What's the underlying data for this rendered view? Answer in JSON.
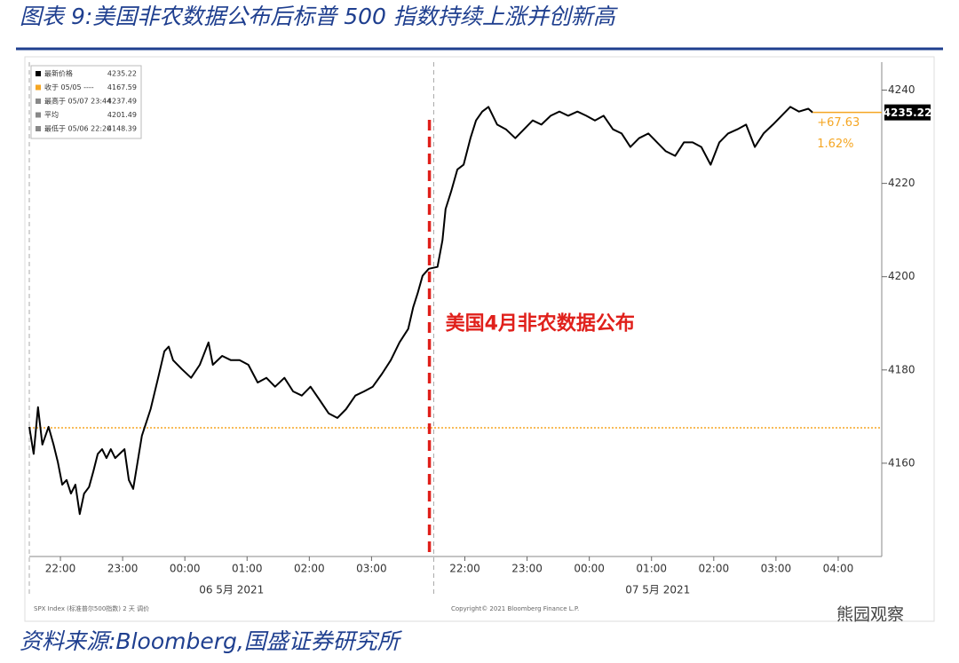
{
  "chart_data": {
    "type": "line",
    "title": "图表 9:美国非农数据公布后标普 500 指数持续上涨并创新高",
    "source": "资料来源:Bloomberg,国盛证券研究所",
    "footnote_left": "SPX Index (标准普尔500指数) 2 天 调价",
    "footnote_right": "Copyright© 2021 Bloomberg Finance L.P.",
    "watermark": "熊园观察",
    "color": "#000000",
    "x": [
      0,
      0.07,
      0.14,
      0.21,
      0.31,
      0.39,
      0.46,
      0.53,
      0.6,
      0.67,
      0.74,
      0.81,
      0.88,
      0.96,
      1.03,
      1.1,
      1.17,
      1.24,
      1.31,
      1.38,
      1.53,
      1.6,
      1.67,
      1.74,
      1.81,
      1.95,
      2.07,
      2.17,
      2.24,
      2.31,
      2.45,
      2.6,
      2.74,
      2.88,
      2.95,
      3.1,
      3.24,
      3.38,
      3.52,
      3.67,
      3.81,
      3.95,
      4.1,
      4.24,
      4.38,
      4.52,
      4.67,
      4.81,
      4.95,
      5.09,
      5.24,
      5.38,
      5.52,
      5.67,
      5.81,
      5.95,
      6.09,
      6.17,
      6.24,
      6.32,
      6.42,
      6.56,
      6.64,
      6.69,
      6.78,
      6.88,
      6.98,
      7.09,
      7.18,
      7.28,
      7.38,
      7.52,
      7.66,
      7.81,
      7.95,
      8.09,
      8.23,
      8.38,
      8.52,
      8.66,
      8.81,
      8.95,
      9.09,
      9.23,
      9.38,
      9.52,
      9.66,
      9.8,
      9.95,
      10.09,
      10.23,
      10.38,
      10.52,
      10.66,
      10.8,
      10.95,
      11.09,
      11.23,
      11.38,
      11.52,
      11.66,
      11.8,
      11.95,
      12.09,
      12.23,
      12.37,
      12.52,
      12.59
    ],
    "values": [
      4167.8,
      4162,
      4172,
      4164,
      4167.8,
      4164,
      4160.2,
      4155.4,
      4156.4,
      4153.5,
      4155.4,
      4149.1,
      4153.5,
      4154.9,
      4158.3,
      4162,
      4163,
      4161.1,
      4163,
      4161.1,
      4163,
      4156.4,
      4154.5,
      4160.2,
      4165.9,
      4171.6,
      4178.3,
      4184,
      4185,
      4182.1,
      4180.2,
      4178.3,
      4181.1,
      4185.9,
      4181.1,
      4183,
      4182.1,
      4182.1,
      4181.1,
      4177.3,
      4178.3,
      4176.4,
      4178.3,
      4175.4,
      4174.5,
      4176.4,
      4173.5,
      4170.7,
      4169.7,
      4171.6,
      4174.5,
      4175.4,
      4176.4,
      4179.2,
      4182.1,
      4185.9,
      4188.8,
      4193.5,
      4196.4,
      4200.2,
      4201.7,
      4202.1,
      4207.8,
      4214.5,
      4218.3,
      4223,
      4224,
      4229.7,
      4233.5,
      4235.4,
      4236.4,
      4232.6,
      4231.6,
      4229.7,
      4231.6,
      4233.5,
      4232.6,
      4234.5,
      4235.4,
      4234.5,
      4235.4,
      4234.5,
      4233.5,
      4234.5,
      4231.6,
      4230.7,
      4227.8,
      4229.7,
      4230.7,
      4228.8,
      4226.9,
      4225.9,
      4228.8,
      4228.8,
      4227.8,
      4224,
      4228.8,
      4230.7,
      4231.6,
      4232.6,
      4227.8,
      4230.7,
      4232.6,
      4234.5,
      4236.4,
      4235.4,
      4236,
      4235.2
    ],
    "xlim": [
      0,
      13.7
    ],
    "xticks": [
      {
        "value": 0.5,
        "label": "22:00"
      },
      {
        "value": 1.5,
        "label": "23:00"
      },
      {
        "value": 2.5,
        "label": "00:00"
      },
      {
        "value": 3.5,
        "label": "01:00"
      },
      {
        "value": 4.5,
        "label": "02:00"
      },
      {
        "value": 5.5,
        "label": "03:00"
      },
      {
        "value": 7,
        "label": "22:00"
      },
      {
        "value": 8,
        "label": "23:00"
      },
      {
        "value": 9,
        "label": "00:00"
      },
      {
        "value": 10,
        "label": "01:00"
      },
      {
        "value": 11,
        "label": "02:00"
      },
      {
        "value": 12,
        "label": "03:00"
      },
      {
        "value": 13,
        "label": "04:00"
      }
    ],
    "x_groups": [
      {
        "label": "06 5月 2021",
        "start": 0,
        "end": 6.5
      },
      {
        "label": "07 5月 2021",
        "start": 6.5,
        "end": 13.7
      }
    ],
    "ylim": [
      4140,
      4246
    ],
    "yticks": [
      4160,
      4180,
      4200,
      4220,
      4240
    ],
    "reference_line": {
      "value": 4167.59,
      "color": "#f5a623"
    },
    "event": {
      "text": "美国4月非农数据公布",
      "x": 6.43,
      "color": "#e0201b"
    },
    "last_value": 4235.22,
    "change": {
      "value": 67.63,
      "label": "+67.63"
    },
    "change_pct": {
      "value": 1.62,
      "label": "1.62%"
    },
    "legend_box": [
      {
        "label": "最新价格",
        "value": 4235.22
      },
      {
        "label": "收于 05/05 ----",
        "value": 4167.59
      },
      {
        "label": "最高于 05/07 23:44",
        "value": 4237.49
      },
      {
        "label": "平均",
        "value": 4201.49
      },
      {
        "label": "最低于 05/06 22:20",
        "value": 4148.39
      }
    ]
  }
}
